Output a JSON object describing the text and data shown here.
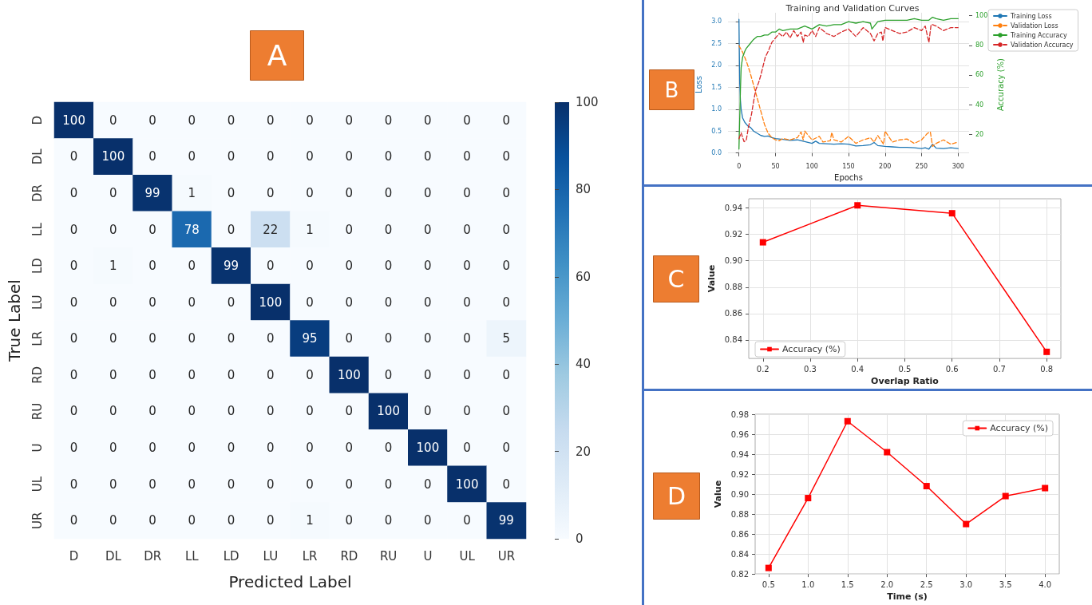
{
  "chart_data": [
    {
      "type": "heatmap",
      "annotations": [
        "A"
      ],
      "xlabel": "Predicted Label",
      "ylabel": "True Label",
      "categories": [
        "D",
        "DL",
        "DR",
        "LL",
        "LD",
        "LU",
        "LR",
        "RD",
        "RU",
        "U",
        "UL",
        "UR"
      ],
      "y_categories": [
        "D",
        "DL",
        "DR",
        "LL",
        "LD",
        "LU",
        "LR",
        "RD",
        "RU",
        "U",
        "UL",
        "UR"
      ],
      "cells": [
        [
          100,
          0,
          0,
          0,
          0,
          0,
          0,
          0,
          0,
          0,
          0,
          0
        ],
        [
          0,
          100,
          0,
          0,
          0,
          0,
          0,
          0,
          0,
          0,
          0,
          0
        ],
        [
          0,
          0,
          99,
          1,
          0,
          0,
          0,
          0,
          0,
          0,
          0,
          0
        ],
        [
          0,
          0,
          0,
          78,
          0,
          22,
          1,
          0,
          0,
          0,
          0,
          0
        ],
        [
          0,
          1,
          0,
          0,
          99,
          0,
          0,
          0,
          0,
          0,
          0,
          0
        ],
        [
          0,
          0,
          0,
          0,
          0,
          100,
          0,
          0,
          0,
          0,
          0,
          0
        ],
        [
          0,
          0,
          0,
          0,
          0,
          0,
          95,
          0,
          0,
          0,
          0,
          5
        ],
        [
          0,
          0,
          0,
          0,
          0,
          0,
          0,
          100,
          0,
          0,
          0,
          0
        ],
        [
          0,
          0,
          0,
          0,
          0,
          0,
          0,
          0,
          100,
          0,
          0,
          0
        ],
        [
          0,
          0,
          0,
          0,
          0,
          0,
          0,
          0,
          0,
          100,
          0,
          0
        ],
        [
          0,
          0,
          0,
          0,
          0,
          0,
          0,
          0,
          0,
          0,
          100,
          0
        ],
        [
          0,
          0,
          0,
          0,
          0,
          0,
          1,
          0,
          0,
          0,
          0,
          99
        ]
      ],
      "clim": [
        0,
        100
      ],
      "cticks": [
        0,
        20,
        40,
        60,
        80,
        100
      ],
      "data_labels": true
    },
    {
      "type": "line",
      "annotations": [
        "B"
      ],
      "title": "Training and Validation Curves",
      "xlabel": "Epochs",
      "ylabel": "Loss",
      "y2label": "Accuracy (%)",
      "xlim": [
        -15,
        315
      ],
      "xticks": [
        0,
        50,
        100,
        150,
        200,
        250,
        300
      ],
      "ylim": [
        -0.08,
        3.2
      ],
      "yticks": [
        {
          "value": 0,
          "label": "0.0"
        },
        0.5,
        {
          "value": 1,
          "label": "1.0"
        },
        1.5,
        {
          "value": 2,
          "label": "2.0"
        },
        2.5,
        {
          "value": 3,
          "label": "3.0"
        }
      ],
      "y2lim": [
        5,
        102
      ],
      "y2ticks": [
        20,
        40,
        60,
        80,
        100
      ],
      "grid": true,
      "legend": "right",
      "series": [
        {
          "name": "Training Loss",
          "color": "#1f77b4",
          "x": [
            0,
            1,
            2,
            3,
            5,
            8,
            12,
            16,
            20,
            25,
            30,
            35,
            40,
            45,
            50,
            60,
            70,
            80,
            90,
            100,
            105,
            110,
            120,
            130,
            140,
            150,
            160,
            170,
            180,
            185,
            190,
            200,
            210,
            220,
            230,
            240,
            250,
            255,
            260,
            265,
            270,
            280,
            290,
            300
          ],
          "values": [
            3.05,
            1.6,
            1.2,
            1.0,
            0.8,
            0.7,
            0.62,
            0.58,
            0.5,
            0.45,
            0.4,
            0.38,
            0.39,
            0.35,
            0.33,
            0.31,
            0.29,
            0.3,
            0.26,
            0.22,
            0.27,
            0.22,
            0.21,
            0.2,
            0.21,
            0.2,
            0.16,
            0.17,
            0.19,
            0.24,
            0.17,
            0.15,
            0.14,
            0.13,
            0.13,
            0.12,
            0.1,
            0.12,
            0.09,
            0.2,
            0.11,
            0.1,
            0.12,
            0.1
          ]
        },
        {
          "name": "Validation Loss",
          "color": "#ff7f0e",
          "line_style": "dashed",
          "x": [
            0,
            5,
            10,
            15,
            20,
            25,
            30,
            35,
            40,
            45,
            50,
            55,
            60,
            70,
            80,
            85,
            88,
            90,
            100,
            110,
            115,
            125,
            127,
            130,
            140,
            150,
            160,
            170,
            180,
            185,
            190,
            198,
            200,
            210,
            220,
            230,
            240,
            250,
            258,
            262,
            265,
            270,
            280,
            290,
            300
          ],
          "values": [
            2.45,
            2.3,
            2.1,
            1.85,
            1.55,
            1.25,
            0.95,
            0.65,
            0.45,
            0.35,
            0.3,
            0.28,
            0.33,
            0.3,
            0.35,
            0.48,
            0.3,
            0.5,
            0.3,
            0.38,
            0.25,
            0.28,
            0.47,
            0.3,
            0.25,
            0.38,
            0.22,
            0.3,
            0.35,
            0.25,
            0.4,
            0.2,
            0.5,
            0.25,
            0.3,
            0.32,
            0.22,
            0.3,
            0.45,
            0.48,
            0.15,
            0.22,
            0.3,
            0.2,
            0.25
          ]
        },
        {
          "name": "Training Accuracy",
          "color": "#2ca02c",
          "axis": "y2",
          "x": [
            0,
            1,
            2,
            3,
            5,
            8,
            10,
            15,
            20,
            25,
            30,
            35,
            40,
            45,
            50,
            55,
            60,
            70,
            80,
            90,
            100,
            110,
            120,
            130,
            140,
            150,
            160,
            170,
            180,
            182,
            190,
            200,
            210,
            220,
            230,
            240,
            250,
            260,
            265,
            270,
            280,
            290,
            300
          ],
          "values": [
            10,
            30,
            50,
            65,
            72,
            76,
            78,
            81,
            84,
            86,
            86,
            87,
            87,
            89,
            89,
            91,
            90,
            91,
            91,
            93,
            91,
            94,
            93,
            94,
            94,
            96,
            95,
            96,
            95,
            91,
            96,
            97,
            97,
            97,
            97,
            98,
            97,
            97,
            99,
            98,
            97,
            98,
            98
          ]
        },
        {
          "name": "Validation Accuracy",
          "color": "#d62728",
          "axis": "y2",
          "line_style": "dashed",
          "x": [
            0,
            3,
            7,
            10,
            13,
            17,
            20,
            23,
            27,
            30,
            33,
            36,
            40,
            45,
            50,
            55,
            60,
            65,
            70,
            75,
            80,
            85,
            88,
            90,
            95,
            100,
            105,
            110,
            120,
            130,
            140,
            150,
            160,
            170,
            180,
            185,
            190,
            195,
            197,
            200,
            210,
            220,
            230,
            240,
            250,
            255,
            260,
            263,
            265,
            270,
            280,
            290,
            300
          ],
          "values": [
            17,
            21,
            15,
            16,
            25,
            33,
            42,
            50,
            55,
            60,
            66,
            72,
            76,
            82,
            85,
            88,
            86,
            89,
            85,
            90,
            86,
            89,
            82,
            87,
            86,
            90,
            86,
            92,
            88,
            86,
            89,
            91,
            86,
            92,
            88,
            83,
            88,
            89,
            83,
            92,
            90,
            88,
            89,
            92,
            90,
            93,
            82,
            94,
            94,
            93,
            90,
            92,
            92
          ]
        }
      ]
    },
    {
      "type": "line",
      "annotations": [
        "C"
      ],
      "xlabel": "Overlap Ratio",
      "ylabel": "Value",
      "x": [
        0.2,
        0.4,
        0.6,
        0.8
      ],
      "xlim": [
        0.17,
        0.83
      ],
      "xticks": [
        0.2,
        0.3,
        0.4,
        0.5,
        0.6,
        0.7,
        0.8
      ],
      "ylim": [
        0.826,
        0.947
      ],
      "yticks": [
        0.84,
        0.86,
        0.88,
        {
          "value": 0.9,
          "label": "0.90"
        },
        0.92,
        0.94
      ],
      "grid": true,
      "legend": "bottom left",
      "marker": "square",
      "series": [
        {
          "name": "Accuracy (%)",
          "color": "#ff0000",
          "values": [
            0.914,
            0.942,
            0.936,
            0.831
          ]
        }
      ]
    },
    {
      "type": "line",
      "annotations": [
        "D"
      ],
      "xlabel": "Time (s)",
      "ylabel": "Value",
      "x": [
        0.5,
        1,
        1.5,
        2,
        2.5,
        3,
        3.5,
        4
      ],
      "xlim": [
        0.33,
        4.18
      ],
      "xticks": [
        0.5,
        {
          "value": 1,
          "label": "1.0"
        },
        1.5,
        {
          "value": 2,
          "label": "2.0"
        },
        2.5,
        {
          "value": 3,
          "label": "3.0"
        },
        3.5,
        {
          "value": 4,
          "label": "4.0"
        }
      ],
      "ylim": [
        0.82,
        0.98
      ],
      "yticks": [
        0.82,
        0.84,
        0.86,
        0.88,
        {
          "value": 0.9,
          "label": "0.90"
        },
        0.92,
        0.94,
        0.96,
        0.98
      ],
      "grid": true,
      "legend": "top right",
      "marker": "square",
      "series": [
        {
          "name": "Accuracy (%)",
          "color": "#ff0000",
          "values": [
            0.826,
            0.896,
            0.973,
            0.942,
            0.908,
            0.87,
            0.898,
            0.906
          ]
        }
      ]
    }
  ]
}
